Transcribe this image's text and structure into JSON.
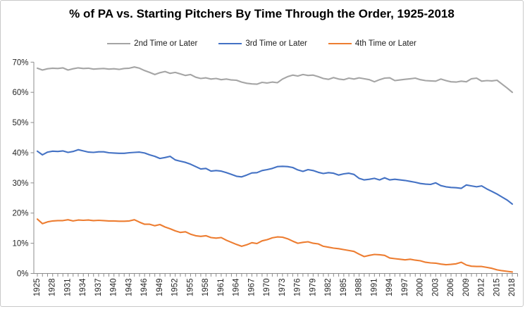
{
  "chart_data": {
    "type": "line",
    "title": "% of PA vs. Starting Pitchers By Time Through the Order, 1925-2018",
    "legend_position": "top",
    "grid": false,
    "ylim": [
      0,
      70
    ],
    "y_tick_labels": [
      "0%",
      "10%",
      "20%",
      "30%",
      "40%",
      "50%",
      "60%",
      "70%"
    ],
    "x_label_interval": 3,
    "style": {
      "axis_color": "#8c8c8c",
      "tick_label_color": "#262626",
      "background": "#ffffff"
    },
    "years": [
      1925,
      1926,
      1927,
      1928,
      1929,
      1930,
      1931,
      1932,
      1933,
      1934,
      1935,
      1936,
      1937,
      1938,
      1939,
      1940,
      1941,
      1942,
      1943,
      1944,
      1945,
      1946,
      1947,
      1948,
      1949,
      1950,
      1951,
      1952,
      1953,
      1954,
      1955,
      1956,
      1957,
      1958,
      1959,
      1960,
      1961,
      1962,
      1963,
      1964,
      1965,
      1966,
      1967,
      1968,
      1969,
      1970,
      1971,
      1972,
      1973,
      1974,
      1975,
      1976,
      1977,
      1978,
      1979,
      1980,
      1981,
      1982,
      1983,
      1984,
      1985,
      1986,
      1987,
      1988,
      1989,
      1990,
      1991,
      1992,
      1993,
      1994,
      1995,
      1996,
      1997,
      1998,
      1999,
      2000,
      2001,
      2002,
      2003,
      2004,
      2005,
      2006,
      2007,
      2008,
      2009,
      2010,
      2011,
      2012,
      2013,
      2014,
      2015,
      2016,
      2017,
      2018
    ],
    "series": [
      {
        "name": "2nd Time or Later",
        "color": "#a5a5a5",
        "values": [
          68.0,
          67.4,
          67.8,
          68.0,
          67.9,
          68.1,
          67.4,
          67.8,
          68.1,
          67.9,
          68.0,
          67.7,
          67.8,
          67.9,
          67.7,
          67.8,
          67.6,
          67.9,
          68.0,
          68.4,
          68.0,
          67.2,
          66.6,
          65.9,
          66.5,
          66.9,
          66.3,
          66.6,
          66.1,
          65.6,
          65.9,
          65.0,
          64.6,
          64.8,
          64.4,
          64.6,
          64.2,
          64.4,
          64.1,
          64.0,
          63.4,
          63.0,
          62.8,
          62.7,
          63.3,
          63.1,
          63.4,
          63.2,
          64.4,
          65.2,
          65.7,
          65.4,
          65.9,
          65.6,
          65.7,
          65.2,
          64.6,
          64.3,
          64.9,
          64.4,
          64.2,
          64.7,
          64.4,
          64.8,
          64.5,
          64.2,
          63.5,
          64.2,
          64.7,
          64.8,
          63.9,
          64.1,
          64.3,
          64.5,
          64.7,
          64.2,
          63.9,
          63.8,
          63.7,
          64.4,
          63.9,
          63.5,
          63.4,
          63.7,
          63.5,
          64.5,
          64.7,
          63.7,
          63.9,
          63.8,
          64.0,
          62.7,
          61.4,
          60.0
        ]
      },
      {
        "name": "3rd Time or Later",
        "color": "#4472c4",
        "values": [
          40.5,
          39.3,
          40.2,
          40.5,
          40.4,
          40.6,
          40.1,
          40.4,
          41.0,
          40.6,
          40.2,
          40.1,
          40.3,
          40.3,
          40.0,
          39.9,
          39.8,
          39.8,
          40.0,
          40.1,
          40.2,
          39.9,
          39.3,
          38.8,
          38.1,
          38.4,
          38.8,
          37.6,
          37.2,
          36.8,
          36.2,
          35.4,
          34.6,
          34.8,
          33.9,
          34.1,
          33.9,
          33.4,
          32.8,
          32.2,
          32.0,
          32.6,
          33.3,
          33.4,
          34.1,
          34.4,
          34.8,
          35.4,
          35.5,
          35.4,
          35.1,
          34.3,
          33.8,
          34.4,
          34.1,
          33.5,
          33.1,
          33.4,
          33.2,
          32.6,
          33.0,
          33.2,
          32.8,
          31.5,
          31.0,
          31.2,
          31.5,
          31.0,
          31.7,
          31.0,
          31.2,
          31.0,
          30.8,
          30.5,
          30.2,
          29.8,
          29.6,
          29.5,
          30.0,
          29.1,
          28.7,
          28.5,
          28.4,
          28.2,
          29.3,
          29.0,
          28.7,
          29.0,
          28.0,
          27.2,
          26.3,
          25.3,
          24.3,
          23.0
        ]
      },
      {
        "name": "4th Time or Later",
        "color": "#ed7d31",
        "values": [
          18.0,
          16.5,
          17.1,
          17.4,
          17.5,
          17.5,
          17.8,
          17.4,
          17.7,
          17.6,
          17.7,
          17.5,
          17.6,
          17.5,
          17.4,
          17.4,
          17.3,
          17.3,
          17.4,
          17.8,
          17.0,
          16.3,
          16.3,
          15.8,
          16.2,
          15.4,
          14.8,
          14.1,
          13.6,
          13.8,
          13.0,
          12.5,
          12.3,
          12.5,
          11.9,
          11.7,
          11.9,
          11.0,
          10.3,
          9.6,
          9.0,
          9.5,
          10.2,
          9.9,
          10.8,
          11.2,
          11.8,
          12.1,
          12.0,
          11.5,
          10.7,
          10.0,
          10.3,
          10.5,
          10.0,
          9.8,
          9.0,
          8.7,
          8.4,
          8.2,
          7.9,
          7.6,
          7.3,
          6.4,
          5.6,
          6.0,
          6.3,
          6.2,
          6.0,
          5.1,
          4.9,
          4.7,
          4.5,
          4.7,
          4.4,
          4.2,
          3.7,
          3.5,
          3.4,
          3.1,
          2.9,
          3.0,
          3.2,
          3.7,
          2.8,
          2.4,
          2.3,
          2.3,
          2.0,
          1.7,
          1.2,
          0.9,
          0.7,
          0.5
        ]
      }
    ]
  }
}
